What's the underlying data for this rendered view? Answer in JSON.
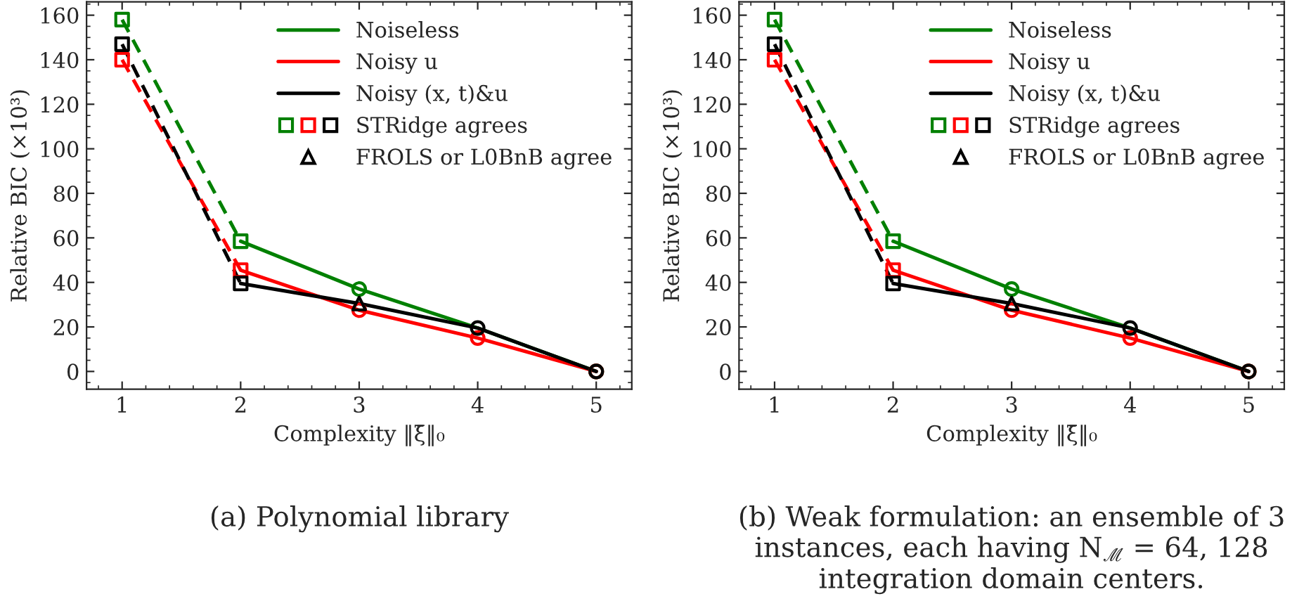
{
  "chart_data": [
    {
      "type": "line",
      "xlabel": "Complexity ‖ξ̄‖₀",
      "ylabel": "Relative BIC (×10³)",
      "annotations": [
        "(a) Polynomial library"
      ],
      "xlim": [
        0.7,
        5.3
      ],
      "xticks": [
        1,
        2,
        3,
        4,
        5
      ],
      "ylim": [
        -8,
        166
      ],
      "yticks": [
        0,
        20,
        40,
        60,
        80,
        100,
        120,
        140,
        160
      ],
      "grid": false,
      "legend": "top right",
      "series": [
        {
          "color": "#008000",
          "line_style": "dashed",
          "x": [
            1,
            2
          ],
          "values": [
            158,
            58.5
          ]
        },
        {
          "color": "#ff0000",
          "line_style": "dashed",
          "x": [
            1,
            2
          ],
          "values": [
            140,
            45.5
          ]
        },
        {
          "color": "#000000",
          "line_style": "dashed",
          "x": [
            1,
            2
          ],
          "values": [
            147,
            39.5
          ]
        },
        {
          "name": "Noiseless",
          "color": "#008000",
          "line_style": "solid",
          "x": [
            2,
            3,
            4,
            5
          ],
          "values": [
            58.5,
            37,
            19.5,
            0
          ]
        },
        {
          "name": "Noisy u",
          "color": "#ff0000",
          "line_style": "solid",
          "x": [
            2,
            3,
            4,
            5
          ],
          "values": [
            45.5,
            27.5,
            15,
            0
          ]
        },
        {
          "name": "Noisy (x, t)&u",
          "color": "#000000",
          "line_style": "solid",
          "x": [
            2,
            3,
            4,
            5
          ],
          "values": [
            39.5,
            30.5,
            19.5,
            0
          ]
        },
        {
          "type": "scatter",
          "marker": "circle",
          "x": [
            3,
            4,
            5,
            3,
            4,
            5,
            4,
            5
          ],
          "values": [
            37,
            null,
            0,
            27.5,
            15,
            0,
            19.5,
            0
          ],
          "colors": [
            "#008000",
            "#008000",
            "#008000",
            "#ff0000",
            "#ff0000",
            "#ff0000",
            "#000000",
            "#000000"
          ]
        },
        {
          "type": "scatter",
          "marker": "square",
          "name": "STRidge agrees",
          "x": [
            1,
            2,
            1,
            2,
            1,
            2
          ],
          "values": [
            158,
            58.5,
            140,
            45.5,
            147,
            39.5
          ],
          "colors": [
            "#008000",
            "#008000",
            "#ff0000",
            "#ff0000",
            "#000000",
            "#000000"
          ]
        },
        {
          "type": "scatter",
          "marker": "triangle",
          "name": "FROLS or L0BnB agree",
          "x": [
            3
          ],
          "values": [
            30.5
          ],
          "colors": [
            "#000000"
          ]
        }
      ]
    },
    {
      "type": "line",
      "xlabel": "Complexity ‖ξ̄‖₀",
      "ylabel": "Relative BIC (×10³)",
      "annotations": [
        "(b) Weak formulation: an ensemble of 3 instances, each having N$_{ℳ}$ = 64, 128 integration domain centers."
      ],
      "xlim": [
        0.7,
        5.3
      ],
      "xticks": [
        1,
        2,
        3,
        4,
        5
      ],
      "ylim": [
        -8,
        166
      ],
      "yticks": [
        0,
        20,
        40,
        60,
        80,
        100,
        120,
        140,
        160
      ],
      "grid": false,
      "legend": "top right",
      "series": [
        {
          "color": "#008000",
          "line_style": "dashed",
          "x": [
            1,
            2
          ],
          "values": [
            158,
            58.5
          ]
        },
        {
          "color": "#ff0000",
          "line_style": "dashed",
          "x": [
            1,
            2
          ],
          "values": [
            140,
            45.5
          ]
        },
        {
          "color": "#000000",
          "line_style": "dashed",
          "x": [
            1,
            2
          ],
          "values": [
            147,
            39.5
          ]
        },
        {
          "name": "Noiseless",
          "color": "#008000",
          "line_style": "solid",
          "x": [
            2,
            3,
            4,
            5
          ],
          "values": [
            58.5,
            37,
            19.5,
            0
          ]
        },
        {
          "name": "Noisy u",
          "color": "#ff0000",
          "line_style": "solid",
          "x": [
            2,
            3,
            4,
            5
          ],
          "values": [
            45.5,
            27.5,
            15,
            0
          ]
        },
        {
          "name": "Noisy (x, t)&u",
          "color": "#000000",
          "line_style": "solid",
          "x": [
            2,
            3,
            4,
            5
          ],
          "values": [
            39.5,
            30.5,
            19.5,
            0
          ]
        },
        {
          "type": "scatter",
          "marker": "circle",
          "x": [
            3,
            4,
            5,
            3,
            4,
            5,
            4,
            5
          ],
          "values": [
            37,
            null,
            0,
            27.5,
            15,
            0,
            19.5,
            0
          ],
          "colors": [
            "#008000",
            "#008000",
            "#008000",
            "#ff0000",
            "#ff0000",
            "#ff0000",
            "#000000",
            "#000000"
          ]
        },
        {
          "type": "scatter",
          "marker": "square",
          "name": "STRidge agrees",
          "x": [
            1,
            2,
            1,
            2,
            1,
            2
          ],
          "values": [
            158,
            58.5,
            140,
            45.5,
            147,
            39.5
          ],
          "colors": [
            "#008000",
            "#008000",
            "#ff0000",
            "#ff0000",
            "#000000",
            "#000000"
          ]
        },
        {
          "type": "scatter",
          "marker": "triangle",
          "name": "FROLS or L0BnB agree",
          "x": [
            3
          ],
          "values": [
            30.5
          ],
          "colors": [
            "#000000"
          ]
        }
      ]
    }
  ]
}
